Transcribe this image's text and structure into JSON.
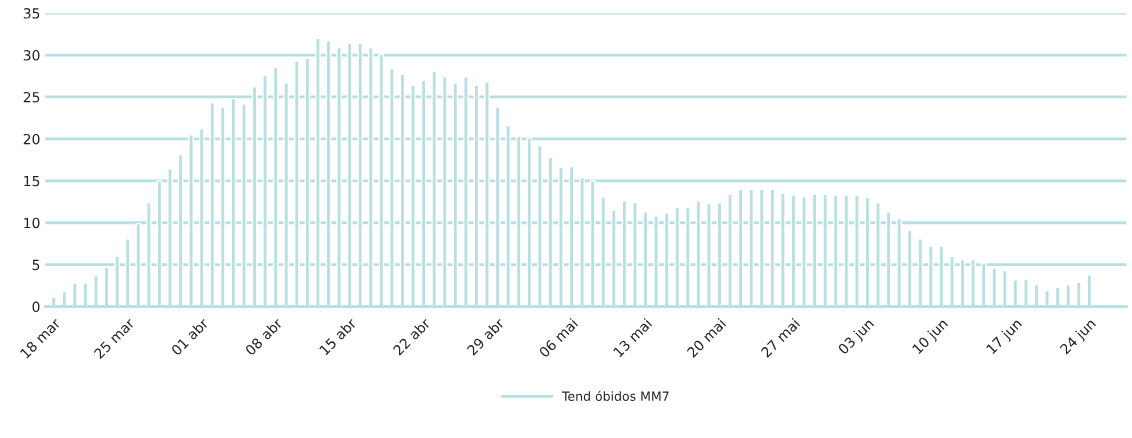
{
  "chart_data": {
    "type": "bar",
    "categories": [
      "18 mar",
      null,
      null,
      null,
      null,
      null,
      null,
      "25 mar",
      null,
      null,
      null,
      null,
      null,
      null,
      "01 abr",
      null,
      null,
      null,
      null,
      null,
      null,
      "08 abr",
      null,
      null,
      null,
      null,
      null,
      null,
      "15 abr",
      null,
      null,
      null,
      null,
      null,
      null,
      "22 abr",
      null,
      null,
      null,
      null,
      null,
      null,
      "29 abr",
      null,
      null,
      null,
      null,
      null,
      null,
      "06 mai",
      null,
      null,
      null,
      null,
      null,
      null,
      "13 mai",
      null,
      null,
      null,
      null,
      null,
      null,
      "20 mai",
      null,
      null,
      null,
      null,
      null,
      null,
      "27 mai",
      null,
      null,
      null,
      null,
      null,
      null,
      "03 jun",
      null,
      null,
      null,
      null,
      null,
      null,
      "10 jun",
      null,
      null,
      null,
      null,
      null,
      null,
      "17 jun",
      null,
      null,
      null,
      null,
      null,
      null,
      "24 jun"
    ],
    "series": [
      {
        "name": "Tend óbidos MM7",
        "color": "#b9dfe2",
        "values": [
          1.1,
          1.8,
          2.8,
          2.8,
          3.7,
          4.7,
          6.0,
          8.1,
          9.9,
          12.4,
          15.0,
          16.4,
          18.1,
          20.5,
          21.2,
          24.3,
          23.8,
          24.8,
          24.2,
          26.2,
          27.6,
          28.5,
          26.7,
          29.3,
          29.6,
          32.0,
          31.7,
          30.9,
          31.4,
          31.4,
          30.9,
          30.1,
          28.4,
          27.7,
          26.4,
          27.0,
          28.1,
          27.4,
          26.7,
          27.4,
          26.4,
          26.8,
          23.8,
          21.6,
          20.3,
          20.1,
          19.2,
          17.8,
          16.6,
          16.7,
          15.4,
          15.0,
          13.1,
          11.5,
          12.6,
          12.4,
          11.3,
          10.8,
          11.2,
          11.8,
          11.8,
          12.6,
          12.3,
          12.4,
          13.4,
          14.0,
          14.0,
          14.0,
          14.0,
          13.5,
          13.3,
          13.1,
          13.4,
          13.4,
          13.3,
          13.3,
          13.3,
          13.0,
          12.4,
          11.3,
          10.5,
          9.1,
          8.1,
          7.2,
          7.2,
          6.0,
          5.6,
          5.6,
          5.2,
          4.6,
          4.3,
          3.2,
          3.3,
          2.6,
          1.9,
          2.3,
          2.6,
          2.9,
          3.8
        ]
      }
    ],
    "ylim": [
      0,
      35
    ],
    "yticks": [
      0,
      5,
      10,
      15,
      20,
      25,
      30,
      35
    ],
    "grid": "y",
    "legend": "bottom"
  }
}
